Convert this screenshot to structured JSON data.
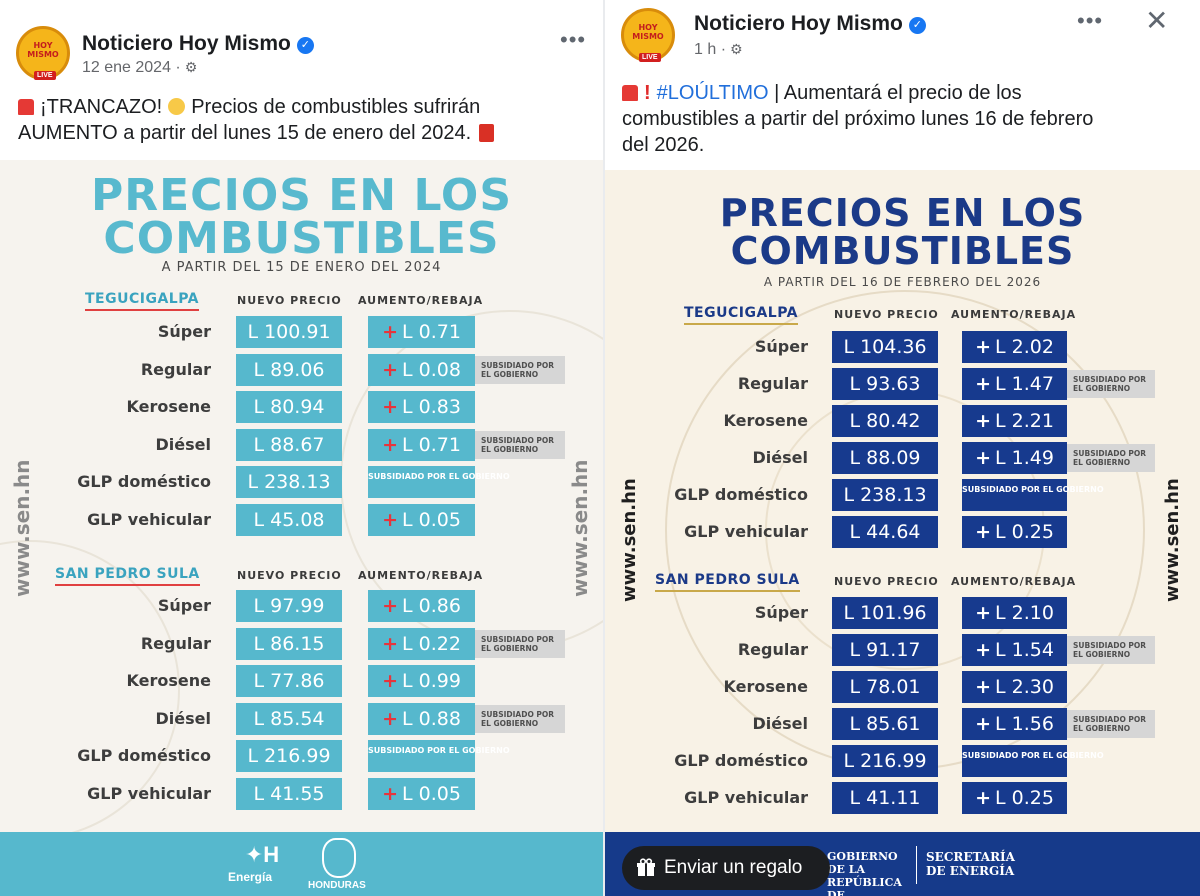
{
  "left_post": {
    "page_name": "Noticiero Hoy Mismo",
    "avatar_text": "HOY MISMO",
    "avatar_badge": "LIVE",
    "date": "12 ene 2024 ·",
    "more_label": "•••",
    "caption_line1": "¡TRANCAZO!",
    "caption_line1b": "Precios de combustibles sufrirán",
    "caption_line2": "AUMENTO a partir del lunes 15 de enero del 2024.",
    "graphic": {
      "title_line1": "PRECIOS EN LOS",
      "title_line2": "COMBUSTIBLES",
      "subtitle": "A PARTIR DEL 15 DE ENERO DEL 2024",
      "side_text": "www.sen.hn",
      "col_price": "NUEVO PRECIO",
      "col_change": "AUMENTO/REBAJA",
      "tegucigalpa": {
        "city": "TEGUCIGALPA",
        "rows": [
          {
            "fuel": "Súper",
            "price": "L 100.91",
            "change": "L 0.71",
            "note": ""
          },
          {
            "fuel": "Regular",
            "price": "L 89.06",
            "change": "L 0.08",
            "note": "SUBSIDIADO POR EL GOBIERNO"
          },
          {
            "fuel": "Kerosene",
            "price": "L 80.94",
            "change": "L 0.83",
            "note": ""
          },
          {
            "fuel": "Diésel",
            "price": "L 88.67",
            "change": "L 0.71",
            "note": "SUBSIDIADO POR EL GOBIERNO"
          },
          {
            "fuel": "GLP doméstico",
            "price": "L 238.13",
            "change": "SUBSIDIADO POR EL GOBIERNO",
            "note": ""
          },
          {
            "fuel": "GLP vehicular",
            "price": "L 45.08",
            "change": "L 0.05",
            "note": ""
          }
        ]
      },
      "san_pedro_sula": {
        "city": "SAN PEDRO SULA",
        "rows": [
          {
            "fuel": "Súper",
            "price": "L 97.99",
            "change": "L 0.86",
            "note": ""
          },
          {
            "fuel": "Regular",
            "price": "L 86.15",
            "change": "L 0.22",
            "note": "SUBSIDIADO POR EL GOBIERNO"
          },
          {
            "fuel": "Kerosene",
            "price": "L 77.86",
            "change": "L 0.99",
            "note": ""
          },
          {
            "fuel": "Diésel",
            "price": "L 85.54",
            "change": "L 0.88",
            "note": "SUBSIDIADO POR EL GOBIERNO"
          },
          {
            "fuel": "GLP doméstico",
            "price": "L 216.99",
            "change": "SUBSIDIADO POR EL GOBIERNO",
            "note": ""
          },
          {
            "fuel": "GLP vehicular",
            "price": "L 41.55",
            "change": "L 0.05",
            "note": ""
          }
        ]
      },
      "footer_logo1": "Energía",
      "footer_logo2": "HONDURAS"
    }
  },
  "right_post": {
    "page_name": "Noticiero Hoy Mismo",
    "avatar_text": "HOY MISMO",
    "avatar_badge": "LIVE",
    "date": "1 h ·",
    "more_label": "•••",
    "close_label": "✕",
    "caption_tag": "#LOÚLTIMO",
    "caption_line1": " | Aumentará el precio de los",
    "caption_line2": "combustibles a partir del próximo lunes 16 de febrero",
    "caption_line3": "del 2026.",
    "graphic": {
      "title_line1": "PRECIOS EN LOS",
      "title_line2": "COMBUSTIBLES",
      "subtitle": "A PARTIR DEL 16 DE FEBRERO DEL 2026",
      "side_text": "www.sen.hn",
      "col_price": "NUEVO PRECIO",
      "col_change": "AUMENTO/REBAJA",
      "tegucigalpa": {
        "city": "TEGUCIGALPA",
        "rows": [
          {
            "fuel": "Súper",
            "price": "L 104.36",
            "change": "L 2.02",
            "note": ""
          },
          {
            "fuel": "Regular",
            "price": "L 93.63",
            "change": "L 1.47",
            "note": "SUBSIDIADO POR EL GOBIERNO"
          },
          {
            "fuel": "Kerosene",
            "price": "L 80.42",
            "change": "L 2.21",
            "note": ""
          },
          {
            "fuel": "Diésel",
            "price": "L 88.09",
            "change": "L 1.49",
            "note": "SUBSIDIADO POR EL GOBIERNO"
          },
          {
            "fuel": "GLP doméstico",
            "price": "L 238.13",
            "change": "SUBSIDIADO POR EL GOBIERNO",
            "note": ""
          },
          {
            "fuel": "GLP vehicular",
            "price": "L 44.64",
            "change": "L 0.25",
            "note": ""
          }
        ]
      },
      "san_pedro_sula": {
        "city": "SAN PEDRO SULA",
        "rows": [
          {
            "fuel": "Súper",
            "price": "L 101.96",
            "change": "L 2.10",
            "note": ""
          },
          {
            "fuel": "Regular",
            "price": "L 91.17",
            "change": "L 1.54",
            "note": "SUBSIDIADO POR EL GOBIERNO"
          },
          {
            "fuel": "Kerosene",
            "price": "L 78.01",
            "change": "L 2.30",
            "note": ""
          },
          {
            "fuel": "Diésel",
            "price": "L 85.61",
            "change": "L 1.56",
            "note": "SUBSIDIADO POR EL GOBIERNO"
          },
          {
            "fuel": "GLP doméstico",
            "price": "L 216.99",
            "change": "SUBSIDIADO POR EL GOBIERNO",
            "note": ""
          },
          {
            "fuel": "GLP vehicular",
            "price": "L 41.11",
            "change": "L 0.25",
            "note": ""
          }
        ]
      },
      "footer_logo1": "GOBIERNO DE LA REPÚBLICA DE HONDURAS",
      "footer_logo2": "SECRETARÍA DE ENERGÍA"
    },
    "gift_button": "Enviar un regalo"
  },
  "colors": {
    "left_accent": "#56b8cd",
    "left_plus": "#e8343b",
    "right_accent": "#173a8e",
    "link_blue": "#216fdb"
  }
}
